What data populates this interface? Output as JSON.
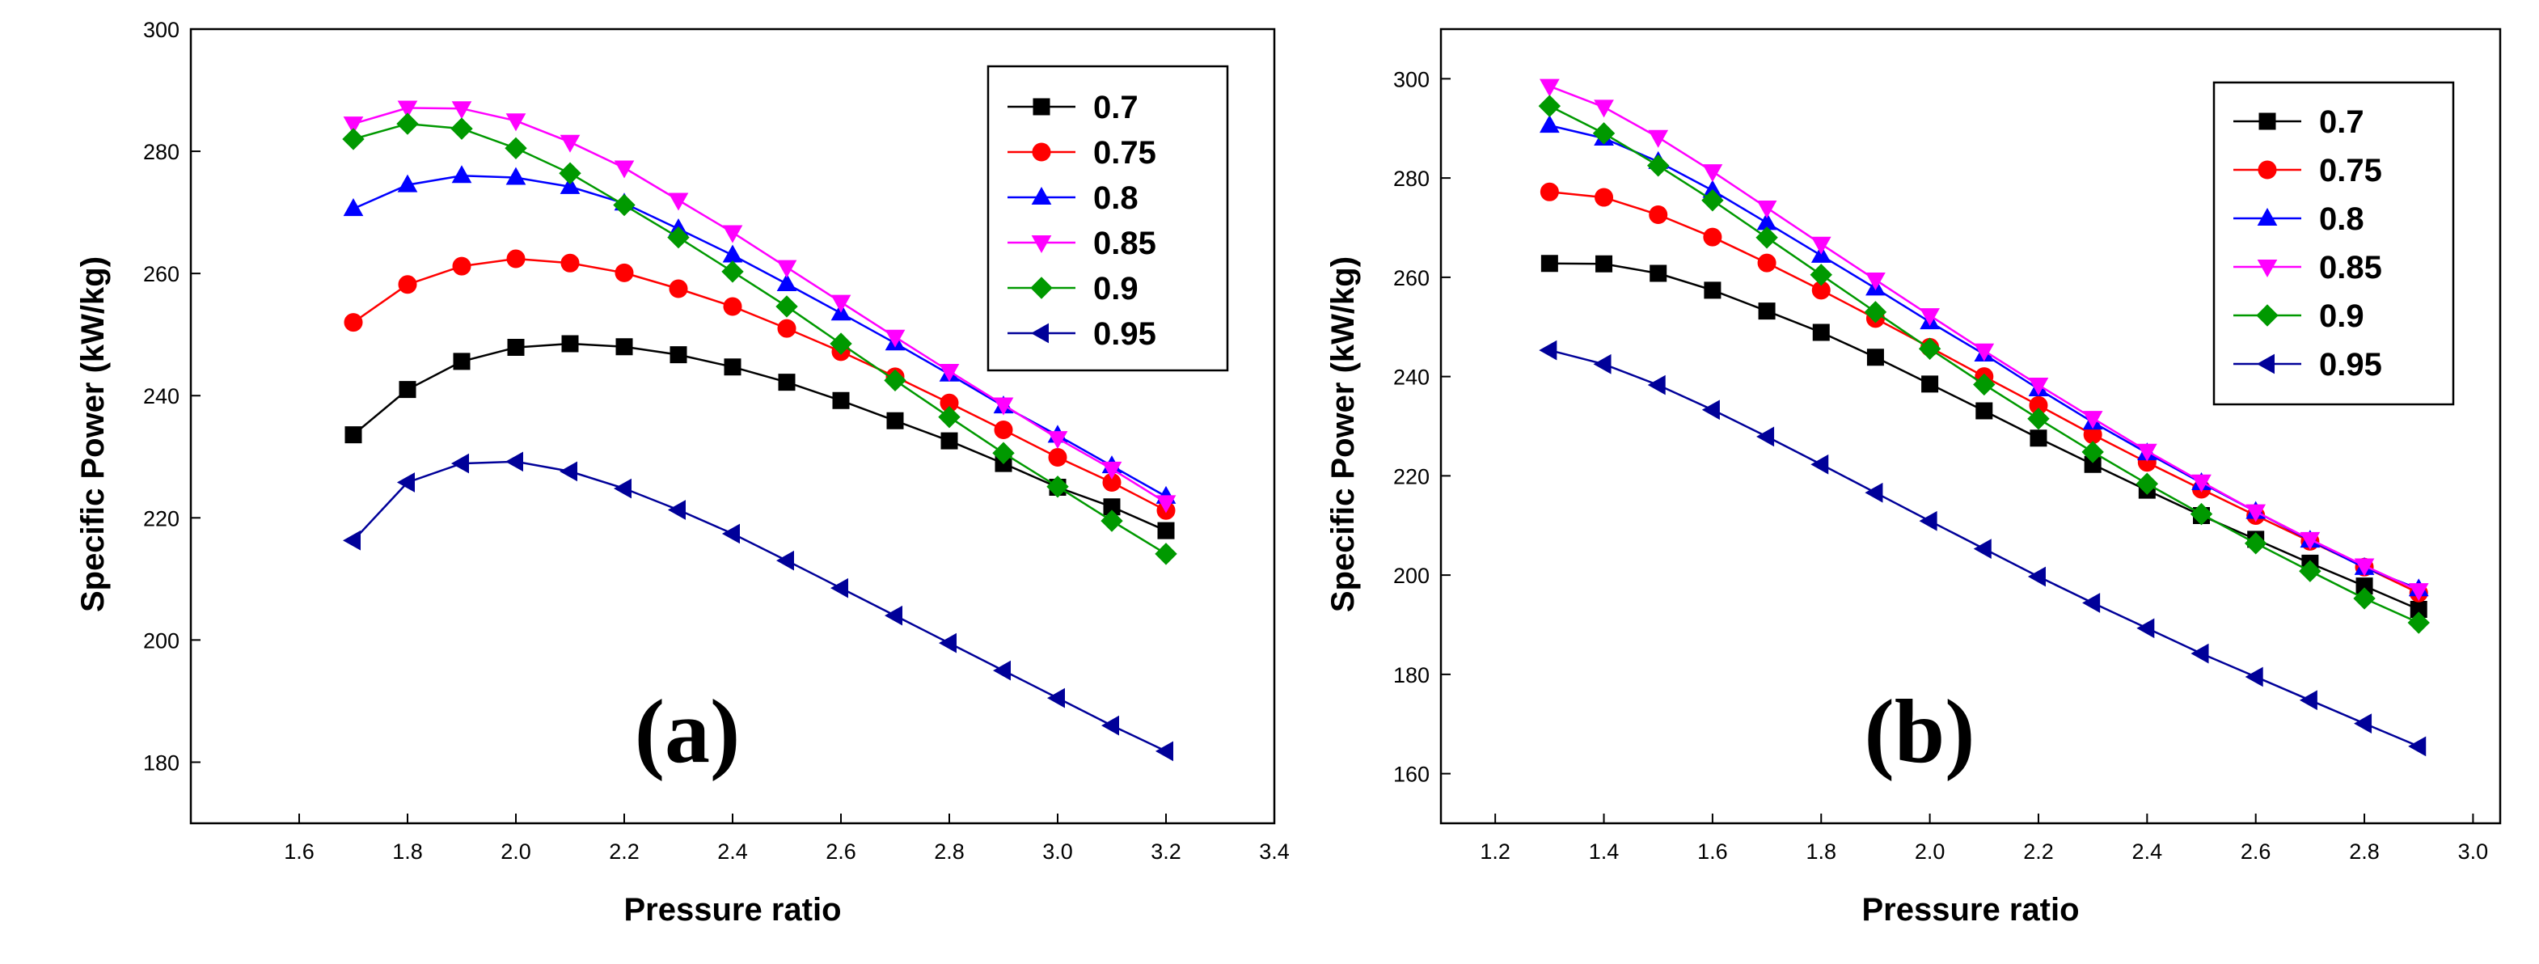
{
  "chart_data": [
    {
      "type": "line",
      "panel_label": "(a)",
      "xlabel": "Pressure ratio",
      "ylabel": "Specific Power (kW/kg)",
      "xlim": [
        1.4,
        3.4
      ],
      "ylim": [
        170,
        300
      ],
      "xticks": [
        "1.6",
        "1.8",
        "2.0",
        "2.2",
        "2.4",
        "2.6",
        "2.8",
        "3.0",
        "3.2",
        "3.4"
      ],
      "yticks": [
        "180",
        "200",
        "220",
        "240",
        "260",
        "280",
        "300"
      ],
      "x": [
        1.7,
        1.8,
        1.9,
        2.0,
        2.1,
        2.2,
        2.3,
        2.4,
        2.5,
        2.6,
        2.7,
        2.8,
        2.9,
        3.0,
        3.1,
        3.2
      ],
      "legend_position": "top-right",
      "series": [
        {
          "name": "0.7",
          "color": "#000000",
          "marker": "square",
          "values": [
            233.6,
            241.0,
            245.6,
            247.9,
            248.5,
            248.0,
            246.7,
            244.7,
            242.2,
            239.2,
            235.9,
            232.6,
            228.9,
            225.0,
            221.8,
            217.9
          ]
        },
        {
          "name": "0.75",
          "color": "#ff0000",
          "marker": "circle",
          "values": [
            252.0,
            258.2,
            261.2,
            262.4,
            261.7,
            260.1,
            257.5,
            254.6,
            251.0,
            247.2,
            243.1,
            238.8,
            234.4,
            229.9,
            225.8,
            221.2
          ]
        },
        {
          "name": "0.8",
          "color": "#0000ff",
          "marker": "triangle-up",
          "values": [
            270.6,
            274.5,
            276.0,
            275.7,
            274.2,
            271.5,
            267.3,
            263.0,
            258.3,
            253.5,
            248.6,
            243.5,
            238.3,
            233.5,
            228.5,
            223.5
          ]
        },
        {
          "name": "0.85",
          "color": "#ff00ff",
          "marker": "triangle-down",
          "values": [
            284.5,
            287.1,
            287.0,
            285.0,
            281.5,
            277.3,
            272.0,
            266.7,
            261.0,
            255.3,
            249.6,
            244.0,
            238.5,
            233.0,
            228.0,
            222.5
          ]
        },
        {
          "name": "0.9",
          "color": "#009900",
          "marker": "diamond",
          "values": [
            282.0,
            284.5,
            283.7,
            280.5,
            276.4,
            271.2,
            265.9,
            260.3,
            254.6,
            248.5,
            242.5,
            236.5,
            230.6,
            225.1,
            219.5,
            214.1
          ]
        },
        {
          "name": "0.95",
          "color": "#000099",
          "marker": "triangle-left",
          "values": [
            216.3,
            225.8,
            228.9,
            229.2,
            227.6,
            224.8,
            221.3,
            217.4,
            213.0,
            208.5,
            204.0,
            199.5,
            195.0,
            190.5,
            186.0,
            181.8
          ]
        }
      ]
    },
    {
      "type": "line",
      "panel_label": "(b)",
      "xlabel": "Pressure ratio",
      "ylabel": "Specific Power (kW/kg)",
      "xlim": [
        1.1,
        3.05
      ],
      "ylim": [
        150,
        310
      ],
      "xticks": [
        "1.2",
        "1.4",
        "1.6",
        "1.8",
        "2.0",
        "2.2",
        "2.4",
        "2.6",
        "2.8",
        "3.0"
      ],
      "yticks": [
        "160",
        "180",
        "200",
        "220",
        "240",
        "260",
        "280",
        "300"
      ],
      "x": [
        1.3,
        1.4,
        1.5,
        1.6,
        1.7,
        1.8,
        1.9,
        2.0,
        2.1,
        2.2,
        2.3,
        2.4,
        2.5,
        2.6,
        2.7,
        2.8,
        2.9
      ],
      "legend_position": "top-right",
      "series": [
        {
          "name": "0.7",
          "color": "#000000",
          "marker": "square",
          "values": [
            262.8,
            262.7,
            260.8,
            257.4,
            253.2,
            248.9,
            243.9,
            238.5,
            233.1,
            227.6,
            222.3,
            217.1,
            212.0,
            207.2,
            202.4,
            197.8,
            193.1
          ]
        },
        {
          "name": "0.75",
          "color": "#ff0000",
          "marker": "circle",
          "values": [
            277.2,
            276.1,
            272.6,
            268.1,
            262.9,
            257.4,
            251.7,
            245.9,
            240.0,
            234.2,
            228.3,
            222.7,
            217.3,
            212.0,
            206.8,
            201.6,
            196.4
          ]
        },
        {
          "name": "0.8",
          "color": "#0000ff",
          "marker": "triangle-up",
          "values": [
            290.6,
            288.0,
            283.3,
            277.5,
            271.0,
            264.4,
            257.8,
            251.0,
            244.5,
            237.5,
            230.8,
            224.6,
            218.6,
            212.8,
            207.0,
            201.5,
            197.2
          ]
        },
        {
          "name": "0.85",
          "color": "#ff00ff",
          "marker": "triangle-down",
          "values": [
            298.5,
            294.3,
            288.2,
            281.3,
            274.0,
            266.7,
            259.5,
            252.3,
            245.2,
            238.3,
            231.6,
            225.0,
            218.8,
            212.8,
            207.2,
            201.9,
            196.9
          ]
        },
        {
          "name": "0.9",
          "color": "#009900",
          "marker": "diamond",
          "values": [
            294.5,
            289.0,
            282.5,
            275.5,
            268.0,
            260.5,
            253.0,
            245.6,
            238.4,
            231.5,
            224.8,
            218.4,
            212.3,
            206.4,
            200.8,
            195.3,
            190.4
          ]
        },
        {
          "name": "0.95",
          "color": "#000099",
          "marker": "triangle-left",
          "values": [
            245.3,
            242.5,
            238.3,
            233.3,
            227.9,
            222.3,
            216.6,
            210.9,
            205.3,
            199.7,
            194.4,
            189.3,
            184.2,
            179.5,
            174.8,
            170.1,
            165.5
          ]
        }
      ]
    }
  ]
}
